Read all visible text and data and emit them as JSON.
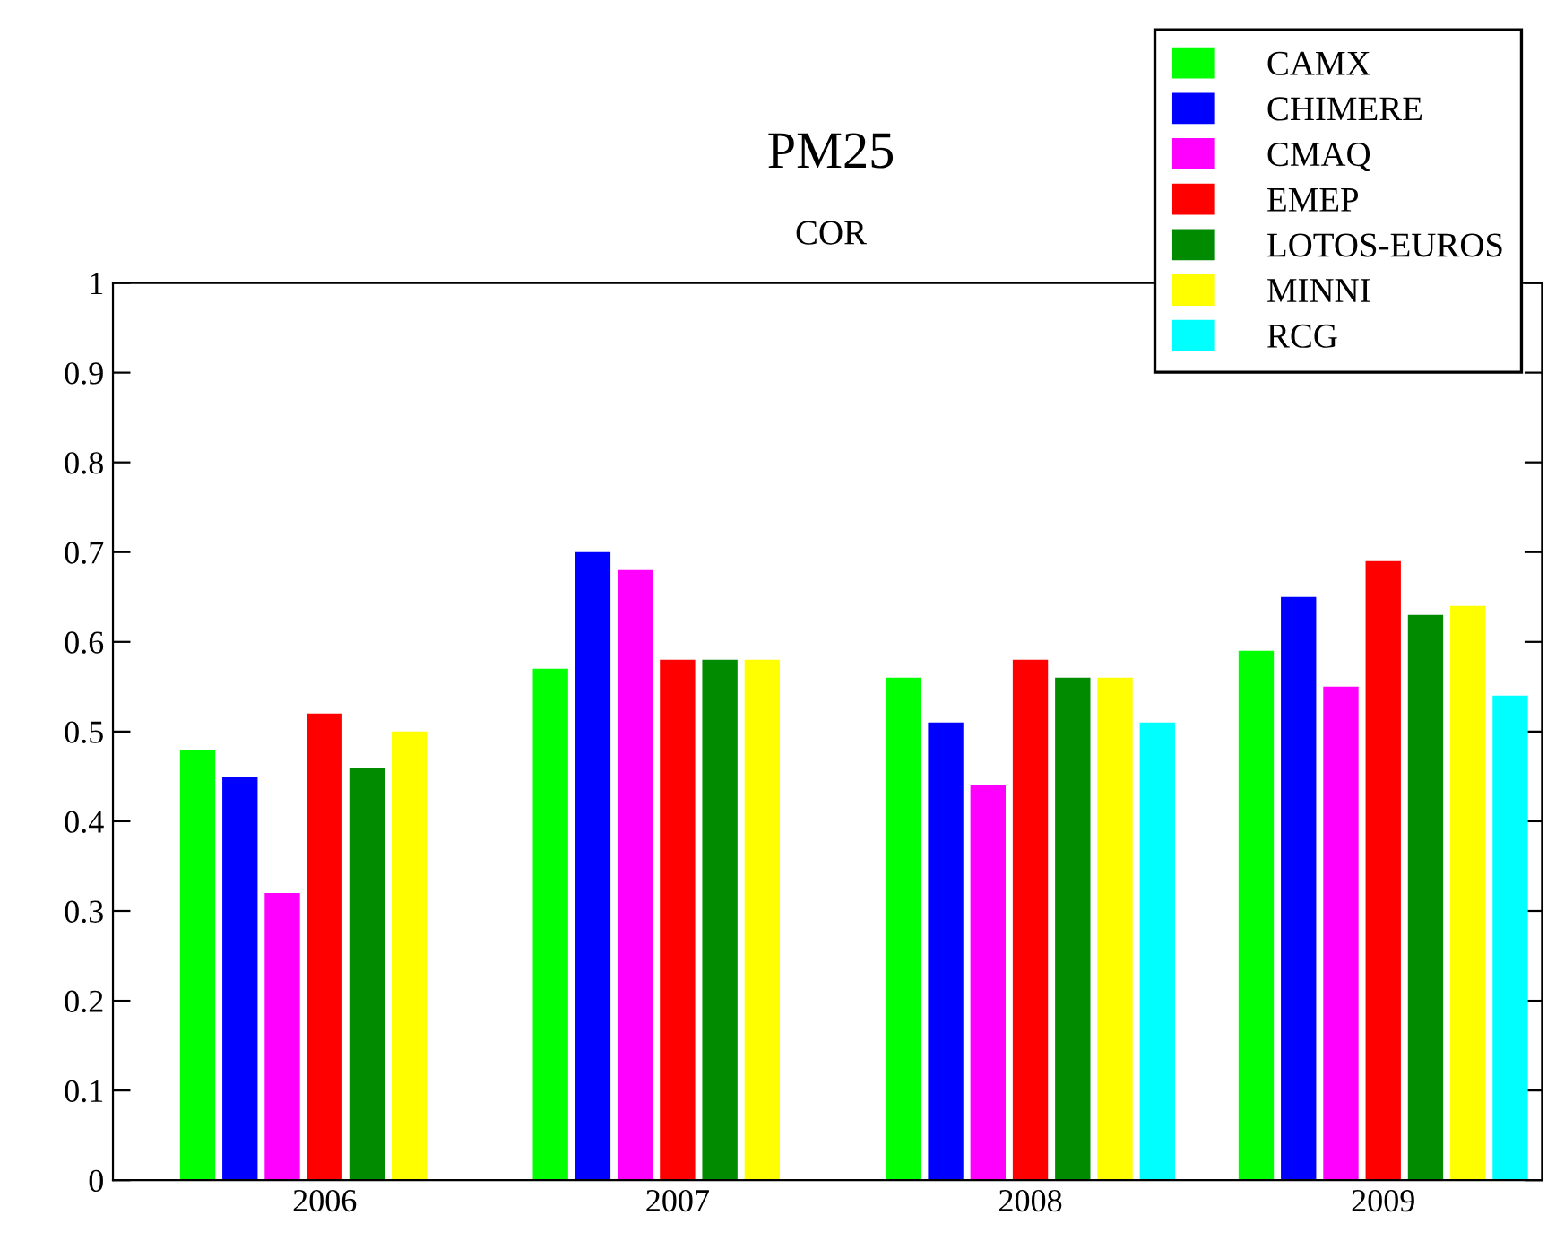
{
  "chart_data": {
    "type": "bar",
    "title": "PM25",
    "subtitle": "COR",
    "categories": [
      "2006",
      "2007",
      "2008",
      "2009"
    ],
    "series": [
      {
        "name": "CAMX",
        "color": "#00ff00",
        "values": [
          0.48,
          0.57,
          0.56,
          0.59
        ]
      },
      {
        "name": "CHIMERE",
        "color": "#0000ff",
        "values": [
          0.45,
          0.7,
          0.51,
          0.65
        ]
      },
      {
        "name": "CMAQ",
        "color": "#ff00ff",
        "values": [
          0.32,
          0.68,
          0.44,
          0.55
        ]
      },
      {
        "name": "EMEP",
        "color": "#ff0000",
        "values": [
          0.52,
          0.58,
          0.58,
          0.69
        ]
      },
      {
        "name": "LOTOS-EUROS",
        "color": "#008b00",
        "values": [
          0.46,
          0.58,
          0.56,
          0.63
        ]
      },
      {
        "name": "MINNI",
        "color": "#ffff00",
        "values": [
          0.5,
          0.58,
          0.56,
          0.64
        ]
      },
      {
        "name": "RCG",
        "color": "#00ffff",
        "values": [
          null,
          null,
          0.51,
          0.54
        ]
      }
    ],
    "ylim": [
      0,
      1
    ],
    "yticks": [
      0,
      0.1,
      0.2,
      0.3,
      0.4,
      0.5,
      0.6,
      0.7,
      0.8,
      0.9,
      1
    ],
    "grid": false,
    "legend": "top right"
  }
}
